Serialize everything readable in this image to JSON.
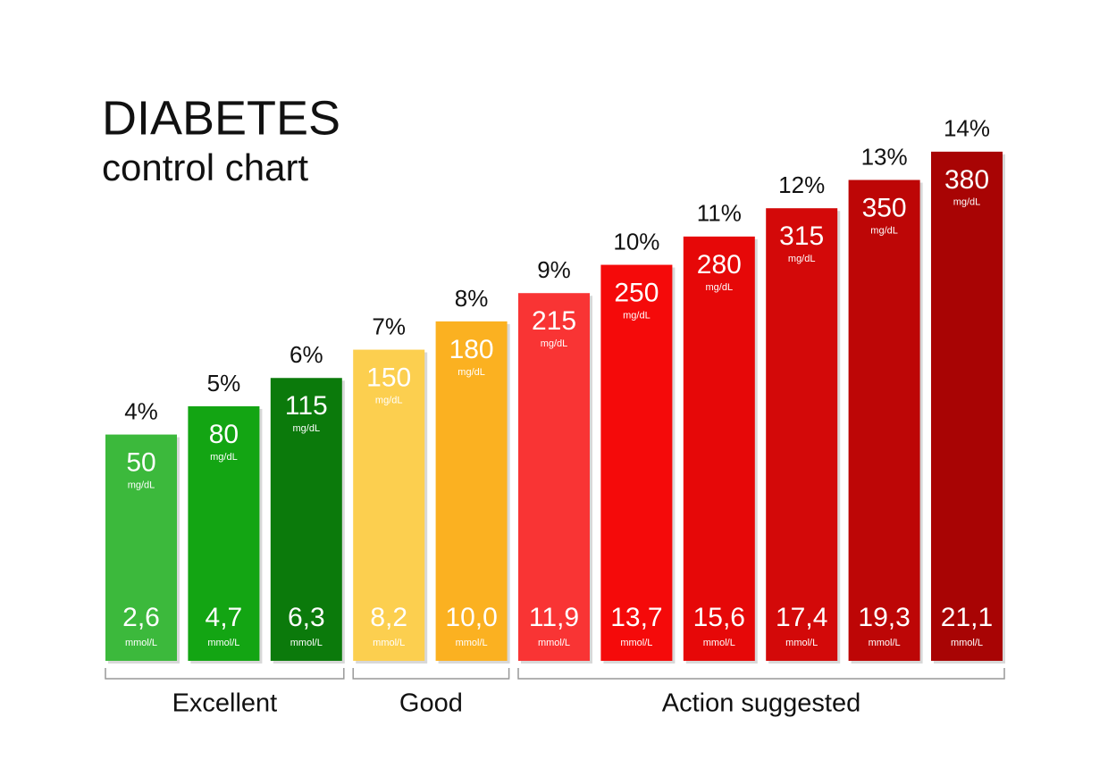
{
  "chart_data": {
    "type": "bar",
    "title": "DIABETES",
    "subtitle": "control chart",
    "categories": [
      null,
      null,
      null,
      null,
      null,
      null,
      null,
      null,
      null,
      null,
      null
    ],
    "values": [
      4,
      5,
      6,
      7,
      8,
      9,
      10,
      11,
      12,
      13,
      14
    ],
    "value_labels": [
      "4%",
      "5%",
      "6%",
      "7%",
      "8%",
      "9%",
      "10%",
      "11%",
      "12%",
      "13%",
      "14%"
    ],
    "mg_dl": [
      50,
      80,
      115,
      150,
      180,
      215,
      250,
      280,
      315,
      350,
      380
    ],
    "mg_dl_unit": "mg/dL",
    "mmol_l_labels": [
      "2,6",
      "4,7",
      "6,3",
      "8,2",
      "10,0",
      "11,9",
      "13,7",
      "15,6",
      "17,4",
      "19,3",
      "21,1"
    ],
    "mmol_l_unit": "mmol/L",
    "groups": [
      "Excellent",
      "Excellent",
      "Excellent",
      "Good",
      "Good",
      "Action suggested",
      "Action suggested",
      "Action suggested",
      "Action suggested",
      "Action suggested",
      "Action suggested"
    ],
    "colors": [
      "#3cb93c",
      "#13a513",
      "#0b7a0b",
      "#fccf4f",
      "#fbb121",
      "#f93434",
      "#f50a0a",
      "#e60808",
      "#d30909",
      "#bd0606",
      "#a80404"
    ],
    "ylim": [
      -4,
      14.5
    ]
  }
}
